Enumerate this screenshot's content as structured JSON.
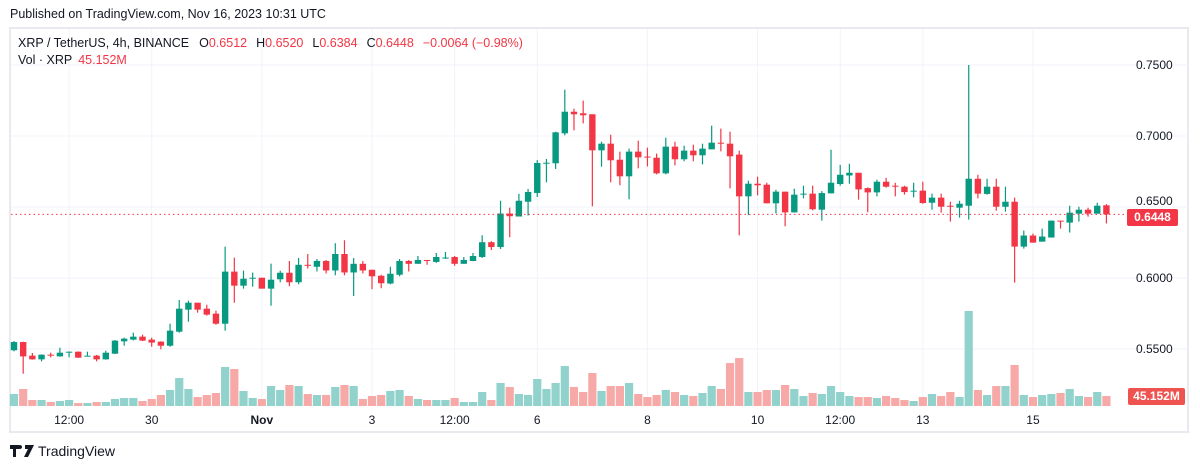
{
  "header": {
    "published": "Published on TradingView.com, Nov 16, 2023 10:31 UTC"
  },
  "legend": {
    "symbol": "XRP / TetherUS, 4h, BINANCE",
    "o_label": "O",
    "o": "0.6512",
    "h_label": "H",
    "h": "0.6520",
    "l_label": "L",
    "l": "0.6384",
    "c_label": "C",
    "c": "0.6448",
    "change": "−0.0064 (−0.98%)",
    "vol_label": "Vol · XRP",
    "vol": "45.152M"
  },
  "price_tag": "0.6448",
  "volume_tag": "45.152M",
  "footer": {
    "brand": "TradingView"
  },
  "colors": {
    "up": "#089981",
    "down": "#f23645",
    "vol_up": "#92d2cc",
    "vol_down": "#f7a9a7",
    "grid": "#f0f3fa"
  },
  "chart_data": {
    "type": "candlestick",
    "interval": "4h",
    "ylim": [
      0.5326,
      0.75
    ],
    "grid": true,
    "y_ticks": [
      "0.7500",
      "0.7000",
      "0.6500",
      "0.6000",
      "0.5500"
    ],
    "x_ticks": [
      {
        "label": "12:00",
        "index": 6,
        "bold": false
      },
      {
        "label": "30",
        "index": 15,
        "bold": false
      },
      {
        "label": "Nov",
        "index": 27,
        "bold": true
      },
      {
        "label": "3",
        "index": 39,
        "bold": false
      },
      {
        "label": "12:00",
        "index": 48,
        "bold": false
      },
      {
        "label": "6",
        "index": 57,
        "bold": false
      },
      {
        "label": "8",
        "index": 69,
        "bold": false
      },
      {
        "label": "10",
        "index": 81,
        "bold": false
      },
      {
        "label": "12:00",
        "index": 90,
        "bold": false
      },
      {
        "label": "13",
        "index": 99,
        "bold": false
      },
      {
        "label": "15",
        "index": 111,
        "bold": false
      }
    ],
    "last_price": 0.6448,
    "ohlc_fields": [
      "open",
      "high",
      "low",
      "close"
    ],
    "ohlc": [
      [
        0.5491,
        0.5556,
        0.5484,
        0.5549
      ],
      [
        0.5549,
        0.5551,
        0.5326,
        0.5448
      ],
      [
        0.5453,
        0.5472,
        0.5425,
        0.5427
      ],
      [
        0.5427,
        0.5462,
        0.5413,
        0.546
      ],
      [
        0.546,
        0.5474,
        0.5441,
        0.5453
      ],
      [
        0.5448,
        0.5509,
        0.5446,
        0.5474
      ],
      [
        0.5479,
        0.5483,
        0.5441,
        0.5481
      ],
      [
        0.5481,
        0.5483,
        0.5437,
        0.5439
      ],
      [
        0.5451,
        0.5481,
        0.5449,
        0.5453
      ],
      [
        0.5453,
        0.5458,
        0.5413,
        0.5427
      ],
      [
        0.5427,
        0.5488,
        0.5425,
        0.5474
      ],
      [
        0.5467,
        0.5563,
        0.5465,
        0.5559
      ],
      [
        0.5554,
        0.558,
        0.5523,
        0.5573
      ],
      [
        0.5566,
        0.5615,
        0.5561,
        0.5587
      ],
      [
        0.5587,
        0.5601,
        0.5556,
        0.5559
      ],
      [
        0.5566,
        0.558,
        0.5516,
        0.5545
      ],
      [
        0.5552,
        0.5554,
        0.5498,
        0.5523
      ],
      [
        0.5523,
        0.5678,
        0.5516,
        0.5629
      ],
      [
        0.5622,
        0.5845,
        0.5615,
        0.5784
      ],
      [
        0.5777,
        0.584,
        0.5692,
        0.5826
      ],
      [
        0.5826,
        0.5826,
        0.5756,
        0.5777
      ],
      [
        0.5784,
        0.5812,
        0.5735,
        0.5742
      ],
      [
        0.5749,
        0.577,
        0.5671,
        0.5678
      ],
      [
        0.5678,
        0.6221,
        0.5629,
        0.6045
      ],
      [
        0.6045,
        0.6143,
        0.5826,
        0.5946
      ],
      [
        0.5946,
        0.6052,
        0.5925,
        0.5995
      ],
      [
        0.5998,
        0.6038,
        0.5939,
        0.6002
      ],
      [
        0.6002,
        0.6002,
        0.5925,
        0.5925
      ],
      [
        0.5925,
        0.6101,
        0.5805,
        0.5988
      ],
      [
        0.5991,
        0.6051,
        0.597,
        0.6037
      ],
      [
        0.6037,
        0.612,
        0.5942,
        0.597
      ],
      [
        0.597,
        0.6141,
        0.5956,
        0.6093
      ],
      [
        0.6093,
        0.6169,
        0.6067,
        0.6088
      ],
      [
        0.6079,
        0.6134,
        0.6046,
        0.612
      ],
      [
        0.612,
        0.6127,
        0.6032,
        0.6053
      ],
      [
        0.6053,
        0.6245,
        0.6019,
        0.6169
      ],
      [
        0.6169,
        0.6266,
        0.6019,
        0.6039
      ],
      [
        0.6039,
        0.6141,
        0.5873,
        0.61
      ],
      [
        0.61,
        0.612,
        0.6032,
        0.6053
      ],
      [
        0.6058,
        0.6058,
        0.5921,
        0.6012
      ],
      [
        0.6016,
        0.6023,
        0.5928,
        0.5963
      ],
      [
        0.5961,
        0.6079,
        0.5956,
        0.603
      ],
      [
        0.6023,
        0.6134,
        0.6012,
        0.612
      ],
      [
        0.612,
        0.6127,
        0.6046,
        0.61
      ],
      [
        0.61,
        0.6155,
        0.61,
        0.6127
      ],
      [
        0.6127,
        0.6127,
        0.6093,
        0.6123
      ],
      [
        0.6113,
        0.6176,
        0.6106,
        0.6148
      ],
      [
        0.6139,
        0.6183,
        0.6134,
        0.6144
      ],
      [
        0.6148,
        0.6155,
        0.6086,
        0.61
      ],
      [
        0.61,
        0.6148,
        0.61,
        0.6127
      ],
      [
        0.612,
        0.6176,
        0.6118,
        0.6155
      ],
      [
        0.6148,
        0.6301,
        0.6141,
        0.6252
      ],
      [
        0.6252,
        0.6259,
        0.6197,
        0.6218
      ],
      [
        0.6218,
        0.6544,
        0.6204,
        0.6454
      ],
      [
        0.6454,
        0.6495,
        0.6287,
        0.6435
      ],
      [
        0.6433,
        0.6593,
        0.6433,
        0.6544
      ],
      [
        0.6537,
        0.6627,
        0.644,
        0.6606
      ],
      [
        0.6599,
        0.683,
        0.657,
        0.681
      ],
      [
        0.6808,
        0.6838,
        0.6674,
        0.6812
      ],
      [
        0.6808,
        0.703,
        0.6768,
        0.7026
      ],
      [
        0.7019,
        0.7326,
        0.7005,
        0.7171
      ],
      [
        0.7171,
        0.7192,
        0.704,
        0.7153
      ],
      [
        0.716,
        0.7249,
        0.7089,
        0.7146
      ],
      [
        0.7153,
        0.7153,
        0.6505,
        0.6899
      ],
      [
        0.6899,
        0.696,
        0.6784,
        0.6946
      ],
      [
        0.6946,
        0.7009,
        0.6674,
        0.6829
      ],
      [
        0.6833,
        0.689,
        0.6653,
        0.6716
      ],
      [
        0.6716,
        0.6911,
        0.6554,
        0.689
      ],
      [
        0.689,
        0.6967,
        0.6772,
        0.685
      ],
      [
        0.6855,
        0.6918,
        0.6786,
        0.685
      ],
      [
        0.6847,
        0.6876,
        0.673,
        0.6737
      ],
      [
        0.6737,
        0.6988,
        0.673,
        0.6925
      ],
      [
        0.6925,
        0.696,
        0.6793,
        0.6836
      ],
      [
        0.6836,
        0.6932,
        0.6822,
        0.6897
      ],
      [
        0.6897,
        0.6939,
        0.6822,
        0.6864
      ],
      [
        0.6864,
        0.6946,
        0.68,
        0.6911
      ],
      [
        0.6906,
        0.7073,
        0.6906,
        0.6953
      ],
      [
        0.6953,
        0.7052,
        0.6892,
        0.695
      ],
      [
        0.6946,
        0.703,
        0.6631,
        0.6857
      ],
      [
        0.6869,
        0.6897,
        0.63,
        0.6575
      ],
      [
        0.6575,
        0.6685,
        0.6444,
        0.6664
      ],
      [
        0.6664,
        0.6714,
        0.6582,
        0.6653
      ],
      [
        0.6657,
        0.6671,
        0.6526,
        0.6526
      ],
      [
        0.6526,
        0.6622,
        0.6455,
        0.6608
      ],
      [
        0.6608,
        0.6608,
        0.6364,
        0.6462
      ],
      [
        0.6462,
        0.6629,
        0.6462,
        0.6587
      ],
      [
        0.659,
        0.665,
        0.6561,
        0.6594
      ],
      [
        0.6594,
        0.665,
        0.6477,
        0.6484
      ],
      [
        0.6481,
        0.6612,
        0.6404,
        0.6598
      ],
      [
        0.6596,
        0.6903,
        0.6596,
        0.6671
      ],
      [
        0.6662,
        0.6797,
        0.665,
        0.6727
      ],
      [
        0.6722,
        0.6804,
        0.6664,
        0.6741
      ],
      [
        0.6741,
        0.6741,
        0.6552,
        0.6624
      ],
      [
        0.6633,
        0.6638,
        0.6463,
        0.6603
      ],
      [
        0.6603,
        0.6692,
        0.6575,
        0.6678
      ],
      [
        0.6678,
        0.6706,
        0.6636,
        0.6643
      ],
      [
        0.665,
        0.6671,
        0.6575,
        0.6645
      ],
      [
        0.6643,
        0.665,
        0.6587,
        0.6605
      ],
      [
        0.661,
        0.6671,
        0.6568,
        0.6615
      ],
      [
        0.6615,
        0.6678,
        0.6523,
        0.6528
      ],
      [
        0.653,
        0.6594,
        0.6481,
        0.6566
      ],
      [
        0.6566,
        0.6594,
        0.646,
        0.6502
      ],
      [
        0.6509,
        0.6537,
        0.6397,
        0.6502
      ],
      [
        0.6495,
        0.6544,
        0.6425,
        0.6523
      ],
      [
        0.6509,
        0.75,
        0.6411,
        0.6699
      ],
      [
        0.6699,
        0.6727,
        0.6561,
        0.6594
      ],
      [
        0.6592,
        0.6699,
        0.6587,
        0.6643
      ],
      [
        0.6643,
        0.6699,
        0.6474,
        0.6502
      ],
      [
        0.6502,
        0.6643,
        0.6467,
        0.6537
      ],
      [
        0.6537,
        0.6566,
        0.5968,
        0.6221
      ],
      [
        0.6221,
        0.6334,
        0.6207,
        0.6299
      ],
      [
        0.6299,
        0.6313,
        0.6249,
        0.6249
      ],
      [
        0.6256,
        0.6348,
        0.6256,
        0.6292
      ],
      [
        0.6285,
        0.6404,
        0.6285,
        0.6404
      ],
      [
        0.6404,
        0.6404,
        0.6348,
        0.6399
      ],
      [
        0.639,
        0.6509,
        0.632,
        0.646
      ],
      [
        0.6453,
        0.6502,
        0.6397,
        0.6481
      ],
      [
        0.6481,
        0.6495,
        0.6432,
        0.6453
      ],
      [
        0.6453,
        0.653,
        0.6453,
        0.6509
      ],
      [
        0.6512,
        0.652,
        0.6384,
        0.6448
      ]
    ],
    "volume_unit": "M",
    "volume": [
      54.2,
      76.8,
      27.1,
      27.1,
      18.1,
      22.6,
      27.1,
      13.5,
      13.5,
      18.1,
      18.1,
      31.6,
      36.1,
      36.1,
      22.6,
      31.6,
      49.7,
      72.2,
      126.4,
      76.8,
      40.6,
      49.7,
      58.7,
      176.1,
      167.1,
      67.7,
      36.1,
      31.6,
      90.3,
      72.2,
      94.8,
      90.3,
      54.2,
      49.7,
      49.7,
      85.8,
      94.8,
      90.3,
      31.6,
      45.2,
      49.7,
      67.7,
      72.2,
      45.2,
      31.6,
      27.1,
      27.1,
      27.1,
      36.1,
      18.1,
      18.1,
      63.2,
      27.1,
      103.8,
      85.8,
      54.2,
      49.7,
      121.9,
      76.8,
      103.8,
      180.6,
      85.8,
      63.2,
      149.0,
      67.7,
      90.3,
      90.3,
      103.8,
      54.2,
      40.6,
      49.7,
      72.2,
      63.2,
      49.7,
      45.2,
      58.7,
      90.3,
      76.8,
      194.1,
      216.7,
      63.2,
      63.2,
      72.2,
      72.2,
      94.8,
      76.8,
      45.2,
      58.7,
      54.2,
      90.3,
      63.2,
      45.2,
      40.6,
      40.6,
      36.1,
      45.2,
      36.1,
      27.1,
      22.6,
      40.6,
      54.2,
      45.2,
      63.2,
      40.6,
      428.9,
      72.2,
      49.7,
      90.3,
      90.3,
      185.1,
      49.7,
      40.6,
      49.7,
      54.2,
      58.7,
      76.8,
      45.2,
      40.6,
      63.2,
      45.152
    ]
  }
}
